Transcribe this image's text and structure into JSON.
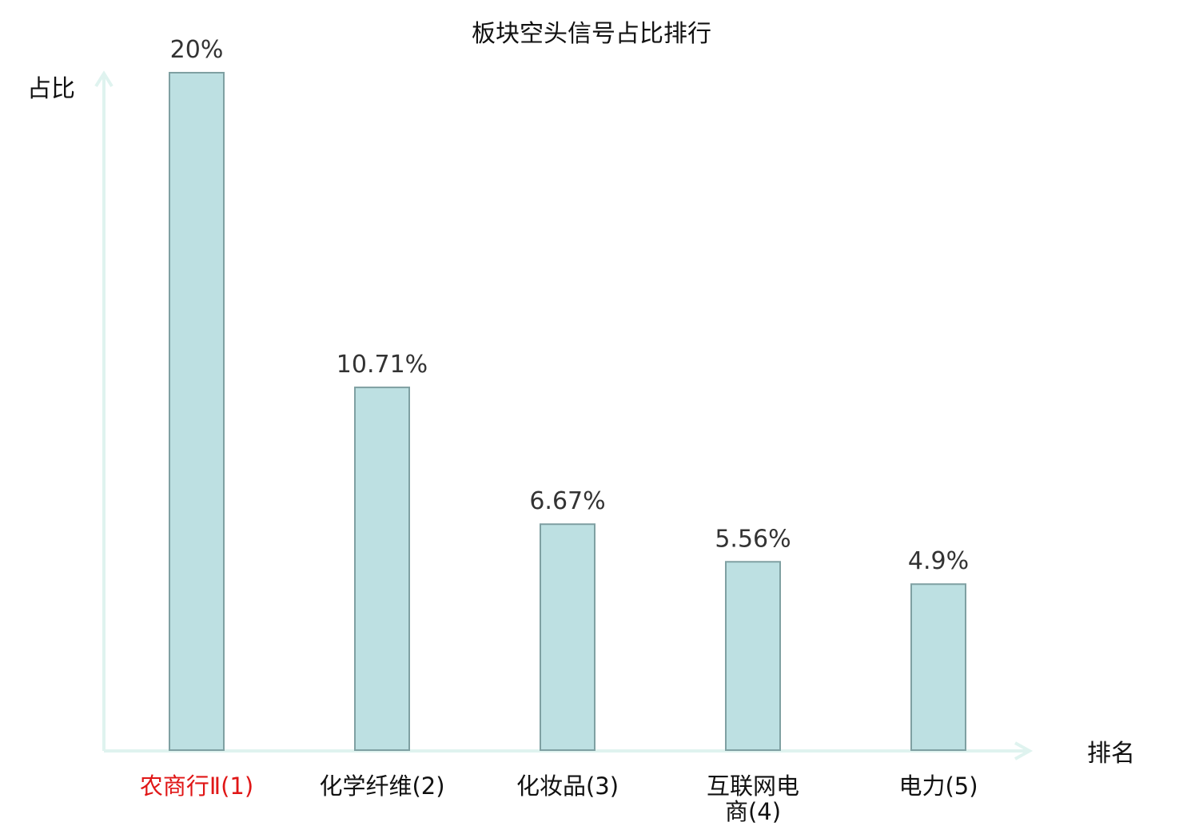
{
  "chart_data": {
    "type": "bar",
    "title": "板块空头信号占比排行",
    "xlabel": "排名",
    "ylabel": "占比",
    "categories": [
      "农商行Ⅱ(1)",
      "化学纤维(2)",
      "化妆品(3)",
      "互联网电商(4)",
      "电力(5)"
    ],
    "category_lines": [
      [
        "农商行Ⅱ(1)"
      ],
      [
        "化学纤维(2)"
      ],
      [
        "化妆品(3)"
      ],
      [
        "互联网电",
        "商(4)"
      ],
      [
        "电力(5)"
      ]
    ],
    "values": [
      20,
      10.71,
      6.67,
      5.56,
      4.9
    ],
    "value_labels": [
      "20%",
      "10.71%",
      "6.67%",
      "5.56%",
      "4.9%"
    ],
    "ylim": [
      0,
      20
    ],
    "grid": false,
    "legend": "none",
    "highlight_index": 0
  },
  "colors": {
    "bar_fill": "#bde0e2",
    "bar_stroke": "#7fa0a2",
    "axis": "#dff3ef",
    "text": "#333333",
    "label_text": "#111111",
    "highlight_label": "#e01616"
  }
}
